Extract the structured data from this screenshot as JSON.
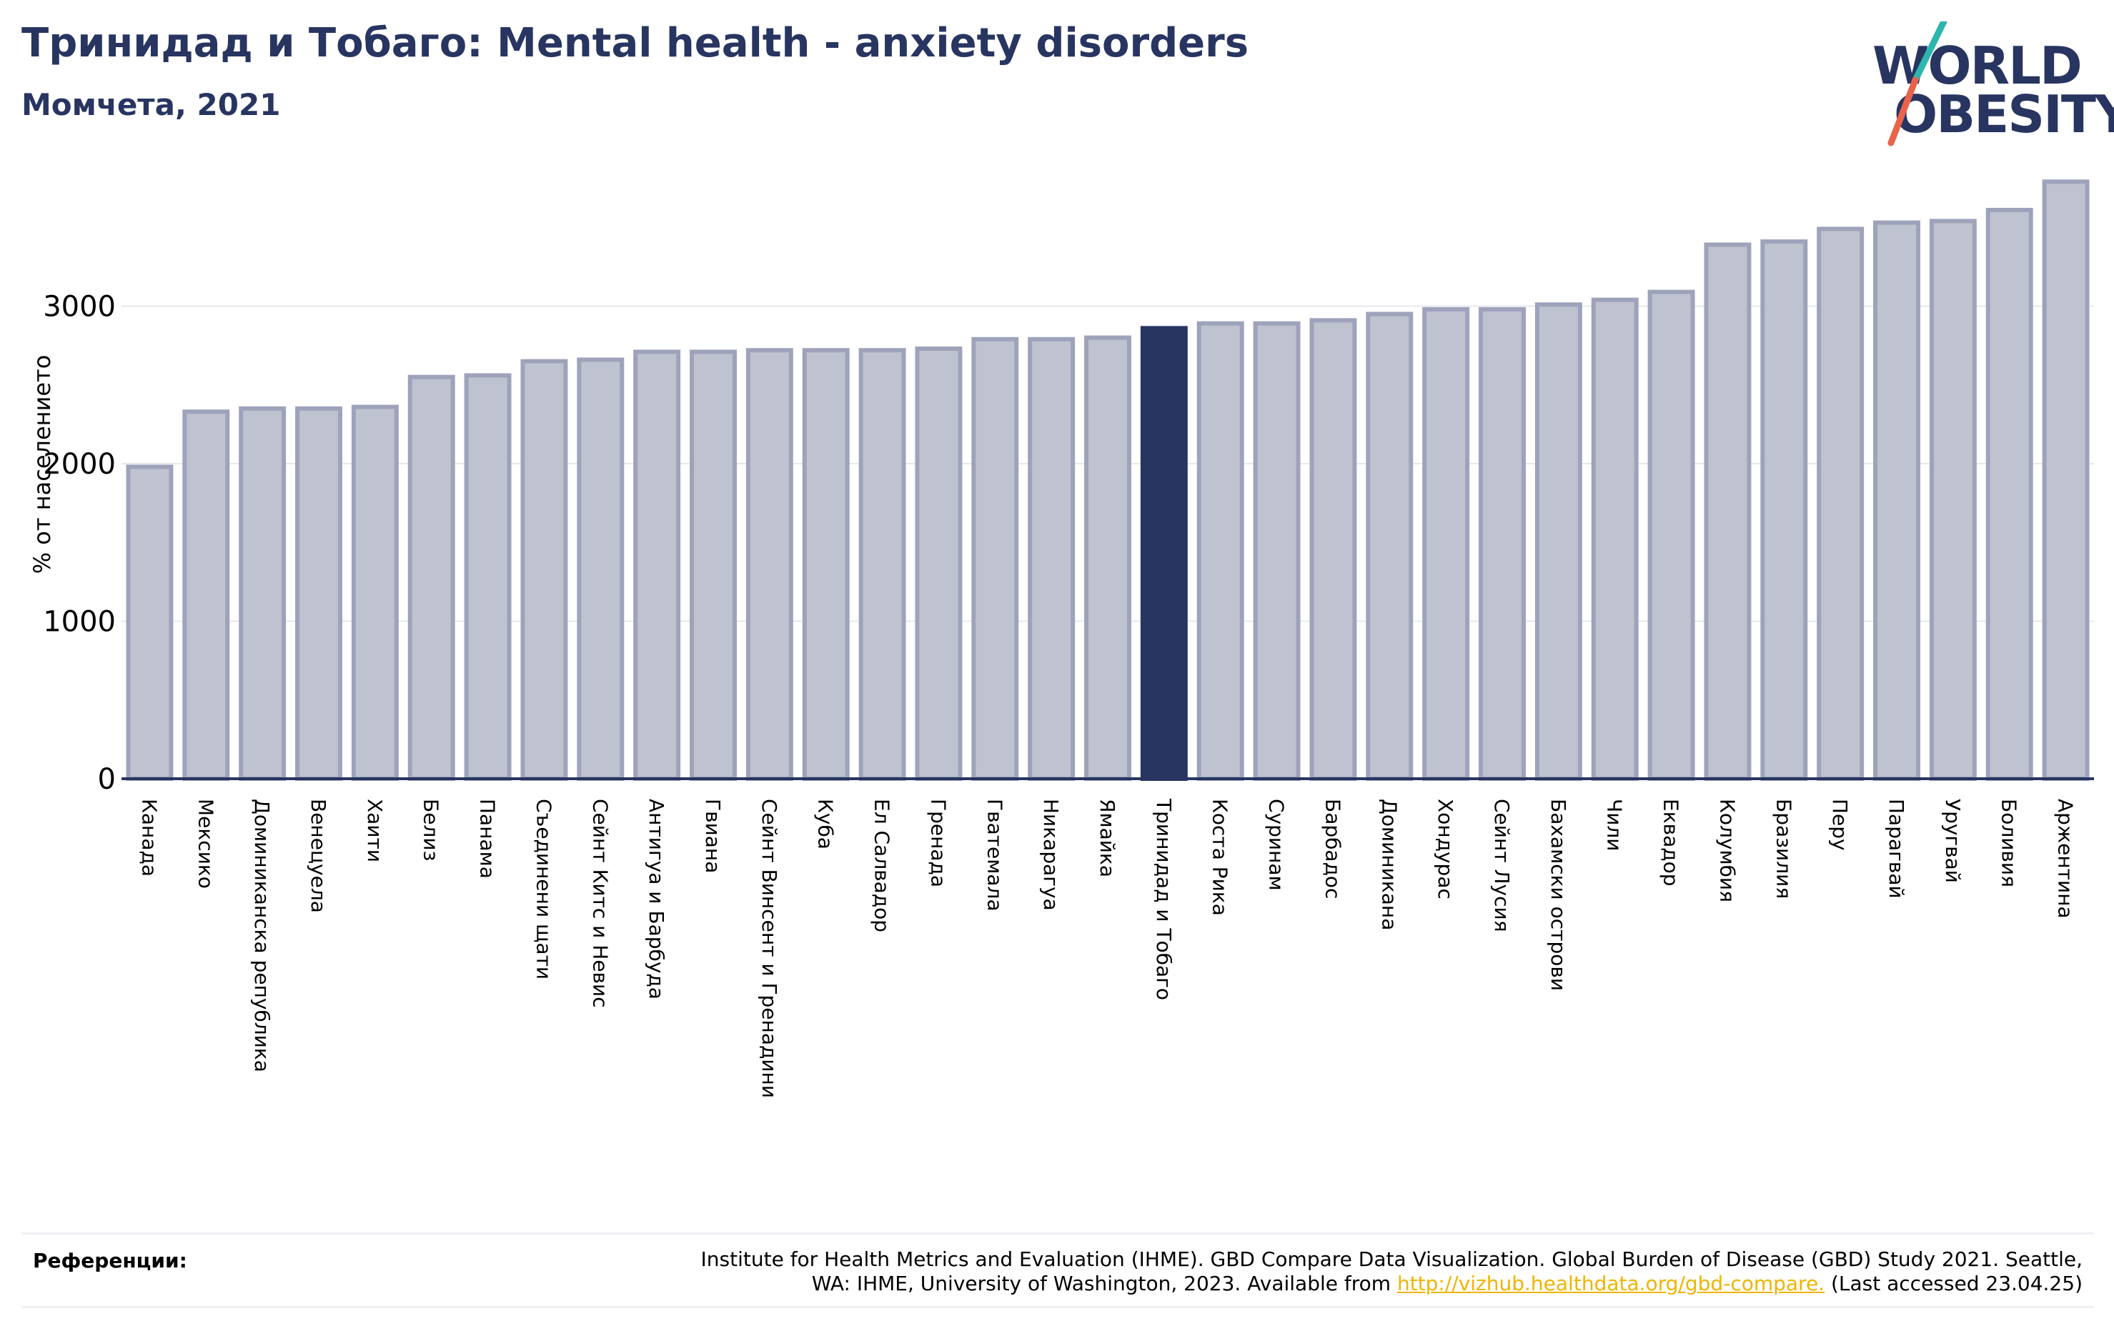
{
  "header": {
    "title": "Тринидад и Тобаго: Mental health - anxiety disorders",
    "subtitle": "Момчета, 2021"
  },
  "logo": {
    "line1": "WORLD",
    "line2": "OBESITY"
  },
  "chart_data": {
    "type": "bar",
    "ylabel": "% от населението",
    "ylim": [
      0,
      3900
    ],
    "yticks": [
      0,
      1000,
      2000,
      3000
    ],
    "grid": true,
    "highlight": "Тринидад и Тобаго",
    "colors": {
      "bar": "#bfc2cf",
      "bar_edge": "#9ea3bb",
      "highlight": "#283561",
      "axis": "#283561",
      "grid": "#e6e8ee"
    },
    "categories": [
      "Канада",
      "Мексико",
      "Доминиканска република",
      "Венецуела",
      "Хаити",
      "Белиз",
      "Панама",
      "Съединени щати",
      "Сейнт Китс и Невис",
      "Антигуа и Барбуда",
      "Гвиана",
      "Сейнт Винсент и Гренадини",
      "Куба",
      "Ел Салвадор",
      "Гренада",
      "Гватемала",
      "Никарагуа",
      "Ямайка",
      "Тринидад и Тобаго",
      "Коста Рика",
      "Суринам",
      "Барбадос",
      "Доминикана",
      "Хондурас",
      "Сейнт Лусия",
      "Бахамски острови",
      "Чили",
      "Еквадор",
      "Колумбия",
      "Бразилия",
      "Перу",
      "Парагвай",
      "Уругвай",
      "Боливия",
      "Аржентина"
    ],
    "values": [
      1980,
      2330,
      2350,
      2350,
      2360,
      2550,
      2560,
      2650,
      2660,
      2710,
      2710,
      2720,
      2720,
      2720,
      2730,
      2790,
      2790,
      2800,
      2860,
      2890,
      2890,
      2910,
      2950,
      2980,
      2980,
      3010,
      3040,
      3090,
      3390,
      3410,
      3490,
      3530,
      3540,
      3610,
      3790
    ]
  },
  "references": {
    "label": "Референции:",
    "text_line1": "Institute for Health Metrics and Evaluation (IHME). GBD Compare Data Visualization. Global Burden of Disease (GBD) Study 2021. Seattle,",
    "text_line2_pre": "WA: IHME, University of Washington, 2023. Available from ",
    "link": "http://vizhub.healthdata.org/gbd-compare.",
    "text_line2_post": " (Last accessed 23.04.25)"
  }
}
